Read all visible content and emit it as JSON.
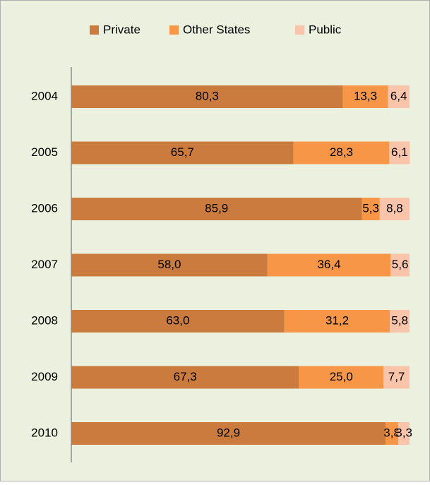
{
  "chart_data": {
    "type": "stacked_bar_horizontal",
    "categories": [
      "2004",
      "2005",
      "2006",
      "2007",
      "2008",
      "2009",
      "2010"
    ],
    "series": [
      {
        "name": "Private",
        "color": "#cb7b3d",
        "values": [
          80.3,
          65.7,
          85.9,
          58.0,
          63.0,
          67.3,
          92.9
        ],
        "value_labels": [
          "80,3",
          "65,7",
          "85,9",
          "58,0",
          "63,0",
          "67,3",
          "92,9"
        ]
      },
      {
        "name": "Other States",
        "color": "#f79646",
        "values": [
          13.3,
          28.3,
          5.3,
          36.4,
          31.2,
          25.0,
          3.8
        ],
        "value_labels": [
          "13,3",
          "28,3",
          "5,3",
          "36,4",
          "31,2",
          "25,0",
          "3,8"
        ]
      },
      {
        "name": "Public",
        "color": "#f9c4a9",
        "values": [
          6.4,
          6.1,
          8.8,
          5.6,
          5.8,
          7.7,
          3.3
        ],
        "value_labels": [
          "6,4",
          "6,1",
          "8,8",
          "5,6",
          "5,8",
          "7,7",
          "3,3"
        ]
      }
    ],
    "xlim": [
      0,
      100
    ],
    "legend": "top"
  }
}
